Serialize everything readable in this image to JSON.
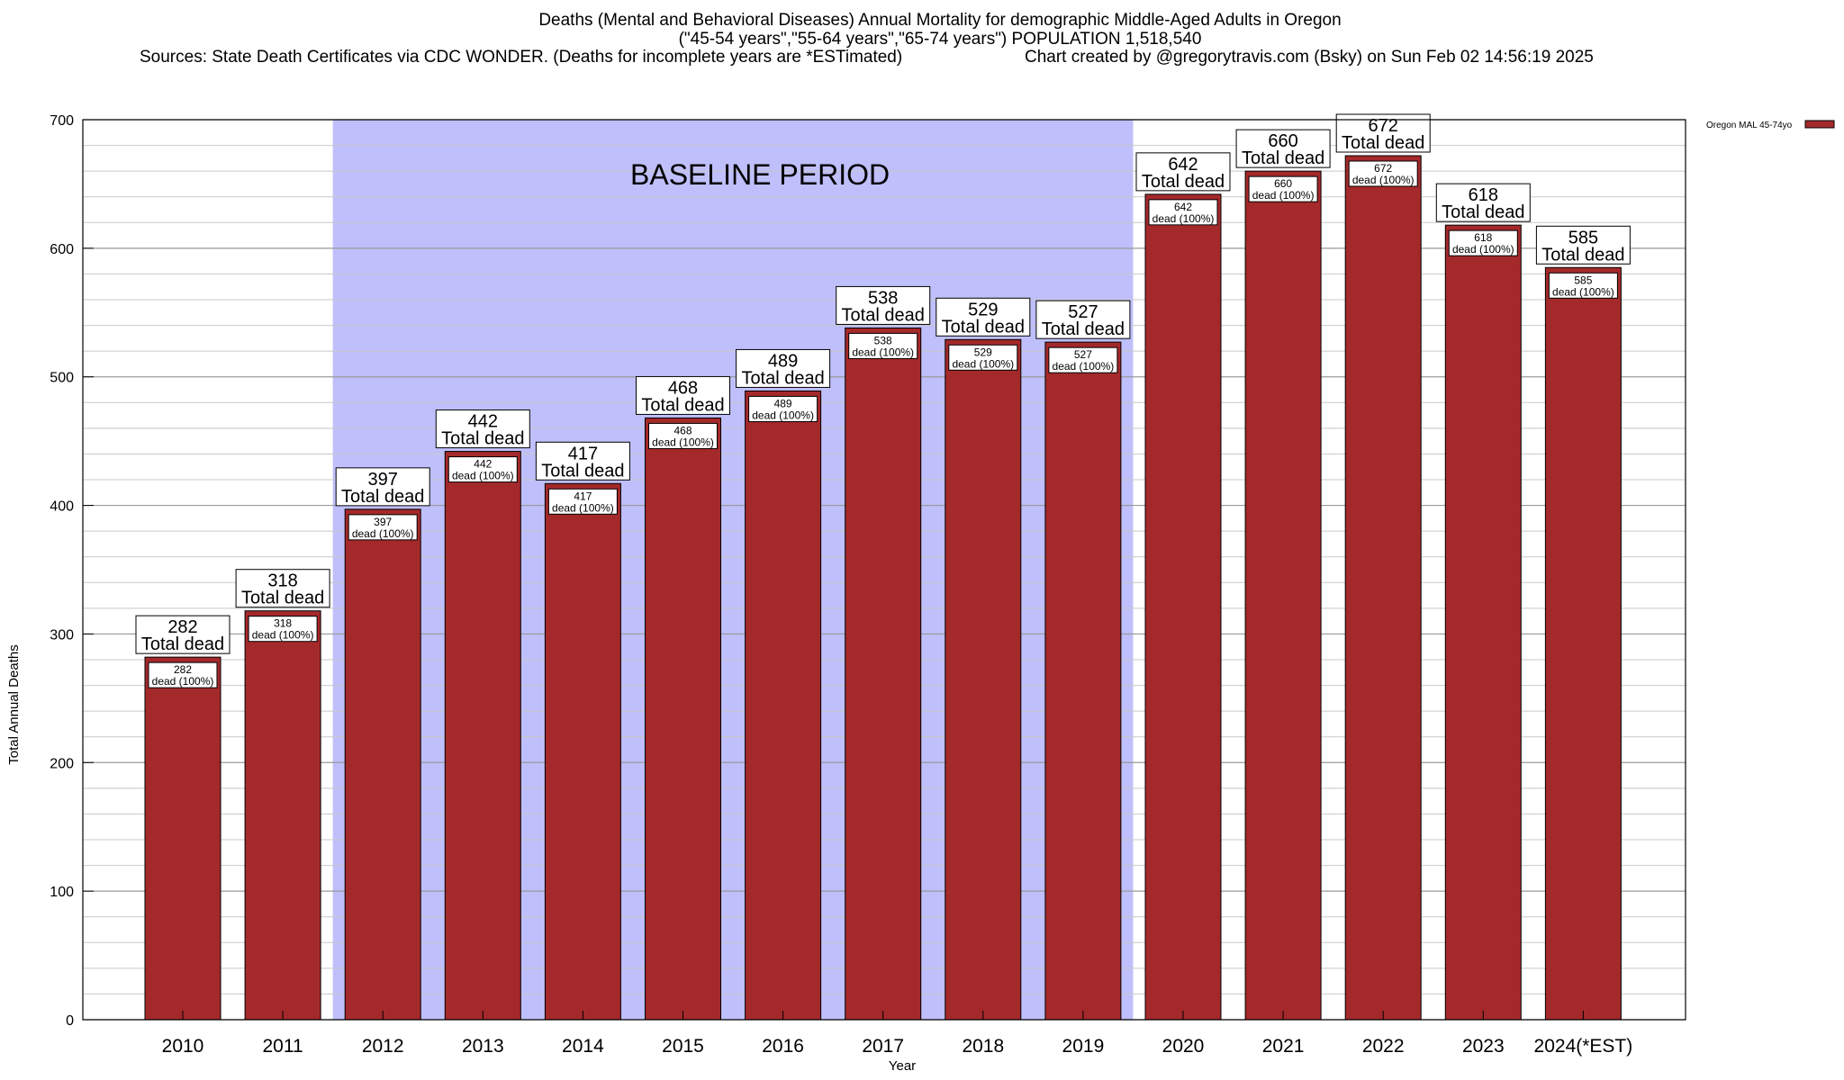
{
  "header": {
    "title_line1": "Deaths (Mental and Behavioral Diseases) Annual Mortality for demographic Middle-Aged Adults in Oregon",
    "title_line2": "(\"45-54 years\",\"55-64 years\",\"65-74 years\") POPULATION 1,518,540",
    "sources": "Sources: State Death Certificates via CDC WONDER. (Deaths for incomplete years are *ESTimated)",
    "credit": "Chart created by @gregorytravis.com (Bsky) on Sun Feb 02 14:56:19 2025"
  },
  "chart_data": {
    "type": "bar",
    "categories": [
      "2010",
      "2011",
      "2012",
      "2013",
      "2014",
      "2015",
      "2016",
      "2017",
      "2018",
      "2019",
      "2020",
      "2021",
      "2022",
      "2023",
      "2024(*EST)"
    ],
    "series": [
      {
        "name": "Oregon MAL 45-74yo",
        "values": [
          282,
          318,
          397,
          442,
          417,
          468,
          489,
          538,
          529,
          527,
          642,
          660,
          672,
          618,
          585
        ]
      }
    ],
    "top_label_suffix": "Total dead",
    "inner_label_suffix": "dead (100%)",
    "xlabel": "Year",
    "ylabel": "Total Annual Deaths",
    "ylim": [
      0,
      700
    ],
    "yticks": [
      0,
      100,
      200,
      300,
      400,
      500,
      600,
      700
    ],
    "minor_tick_step": 20,
    "grid": true,
    "legend_position": "top-right",
    "baseline_period": {
      "label": "BASELINE PERIOD",
      "start": "2012",
      "end": "2019"
    },
    "colors": {
      "bar": "#a4292b",
      "baseline_shade": "#bfbffb",
      "grid": "#c8c8c8"
    }
  }
}
